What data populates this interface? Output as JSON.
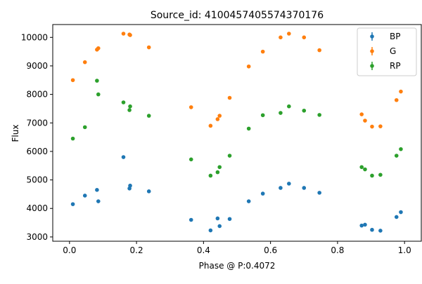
{
  "chart_data": {
    "type": "scatter",
    "title": "Source_id: 4100457405574370176",
    "xlabel": "Phase @ P:0.4072",
    "ylabel": "Flux",
    "xlim": [
      -0.05,
      1.05
    ],
    "ylim": [
      2850,
      10450
    ],
    "xticks": [
      0.0,
      0.2,
      0.4,
      0.6,
      0.8,
      1.0
    ],
    "xtick_labels": [
      "0.0",
      "0.2",
      "0.4",
      "0.6",
      "0.8",
      "1.0"
    ],
    "yticks": [
      3000,
      4000,
      5000,
      6000,
      7000,
      8000,
      9000,
      10000
    ],
    "ytick_labels": [
      "3000",
      "4000",
      "5000",
      "6000",
      "7000",
      "8000",
      "9000",
      "10000"
    ],
    "grid": false,
    "legend_position": "top-right",
    "series": [
      {
        "name": "BP",
        "color": "#1f77b4",
        "points": [
          [
            0.01,
            4150
          ],
          [
            0.046,
            4450
          ],
          [
            0.082,
            4650
          ],
          [
            0.086,
            4250
          ],
          [
            0.161,
            5800
          ],
          [
            0.179,
            4700
          ],
          [
            0.181,
            4800
          ],
          [
            0.237,
            4600
          ],
          [
            0.363,
            3600
          ],
          [
            0.421,
            3230
          ],
          [
            0.442,
            3650
          ],
          [
            0.448,
            3380
          ],
          [
            0.478,
            3630
          ],
          [
            0.535,
            4250
          ],
          [
            0.577,
            4520
          ],
          [
            0.63,
            4720
          ],
          [
            0.655,
            4870
          ],
          [
            0.7,
            4720
          ],
          [
            0.746,
            4550
          ],
          [
            0.872,
            3400
          ],
          [
            0.882,
            3430
          ],
          [
            0.903,
            3250
          ],
          [
            0.928,
            3220
          ],
          [
            0.976,
            3700
          ],
          [
            0.989,
            3870
          ]
        ]
      },
      {
        "name": "G",
        "color": "#ff7f0e",
        "points": [
          [
            0.01,
            8500
          ],
          [
            0.046,
            9130
          ],
          [
            0.082,
            9570
          ],
          [
            0.086,
            9620
          ],
          [
            0.161,
            10130
          ],
          [
            0.179,
            10100
          ],
          [
            0.181,
            10080
          ],
          [
            0.237,
            9650
          ],
          [
            0.363,
            7550
          ],
          [
            0.421,
            6900
          ],
          [
            0.442,
            7130
          ],
          [
            0.448,
            7250
          ],
          [
            0.478,
            7880
          ],
          [
            0.535,
            8980
          ],
          [
            0.577,
            9500
          ],
          [
            0.63,
            10000
          ],
          [
            0.655,
            10130
          ],
          [
            0.7,
            10000
          ],
          [
            0.746,
            9550
          ],
          [
            0.872,
            7300
          ],
          [
            0.882,
            7080
          ],
          [
            0.903,
            6870
          ],
          [
            0.928,
            6880
          ],
          [
            0.976,
            7800
          ],
          [
            0.989,
            8100
          ]
        ]
      },
      {
        "name": "RP",
        "color": "#2ca02c",
        "points": [
          [
            0.01,
            6450
          ],
          [
            0.046,
            6850
          ],
          [
            0.082,
            8480
          ],
          [
            0.086,
            8000
          ],
          [
            0.161,
            7720
          ],
          [
            0.179,
            7450
          ],
          [
            0.181,
            7580
          ],
          [
            0.237,
            7250
          ],
          [
            0.363,
            5720
          ],
          [
            0.421,
            5150
          ],
          [
            0.442,
            5270
          ],
          [
            0.448,
            5450
          ],
          [
            0.478,
            5850
          ],
          [
            0.535,
            6800
          ],
          [
            0.577,
            7270
          ],
          [
            0.63,
            7350
          ],
          [
            0.655,
            7580
          ],
          [
            0.7,
            7430
          ],
          [
            0.746,
            7280
          ],
          [
            0.872,
            5450
          ],
          [
            0.882,
            5370
          ],
          [
            0.903,
            5150
          ],
          [
            0.928,
            5180
          ],
          [
            0.976,
            5850
          ],
          [
            0.989,
            6080
          ]
        ]
      }
    ]
  }
}
